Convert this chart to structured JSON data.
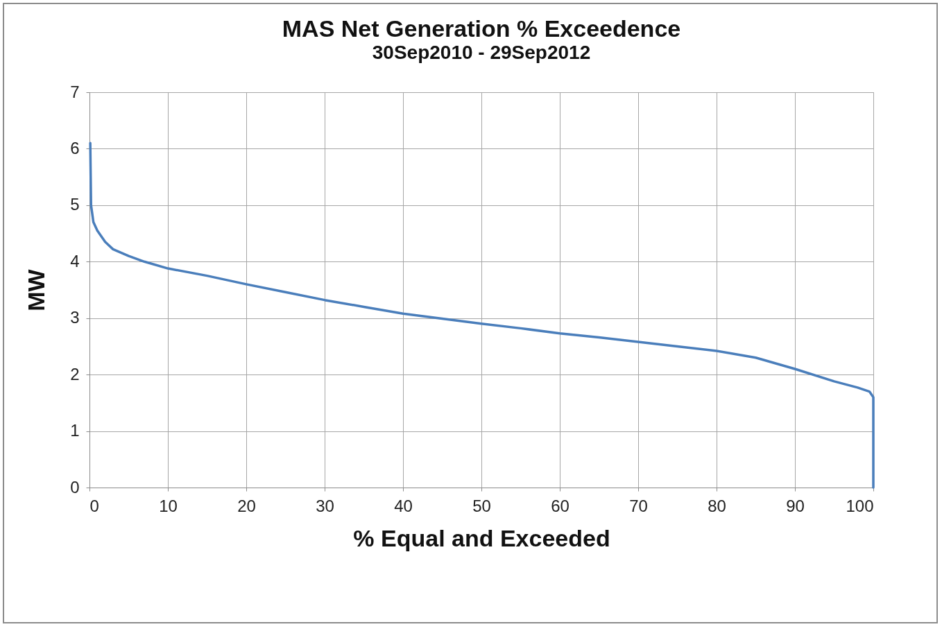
{
  "chart_data": {
    "type": "line",
    "title": "MAS Net Generation % Exceedence",
    "subtitle": "30Sep2010 - 29Sep2012",
    "xlabel": "% Equal and Exceeded",
    "ylabel": "MW",
    "x": [
      0.1,
      0.2,
      0.5,
      1,
      2,
      3,
      5,
      7,
      10,
      15,
      20,
      25,
      30,
      35,
      40,
      45,
      50,
      55,
      60,
      65,
      70,
      75,
      80,
      85,
      90,
      95,
      98,
      99.5,
      100,
      100
    ],
    "series": [
      {
        "color": "#4a7ebb",
        "values": [
          6.1,
          5.0,
          4.7,
          4.55,
          4.35,
          4.22,
          4.1,
          4.0,
          3.88,
          3.75,
          3.6,
          3.46,
          3.32,
          3.2,
          3.08,
          2.99,
          2.9,
          2.82,
          2.73,
          2.66,
          2.58,
          2.5,
          2.42,
          2.3,
          2.1,
          1.88,
          1.77,
          1.7,
          1.6,
          0
        ]
      }
    ],
    "xlim": [
      0,
      100
    ],
    "xticks": [
      0,
      10,
      20,
      30,
      40,
      50,
      60,
      70,
      80,
      90,
      100
    ],
    "ylim": [
      0,
      7
    ],
    "yticks": [
      0,
      1,
      2,
      3,
      4,
      5,
      6,
      7
    ],
    "grid": true
  }
}
